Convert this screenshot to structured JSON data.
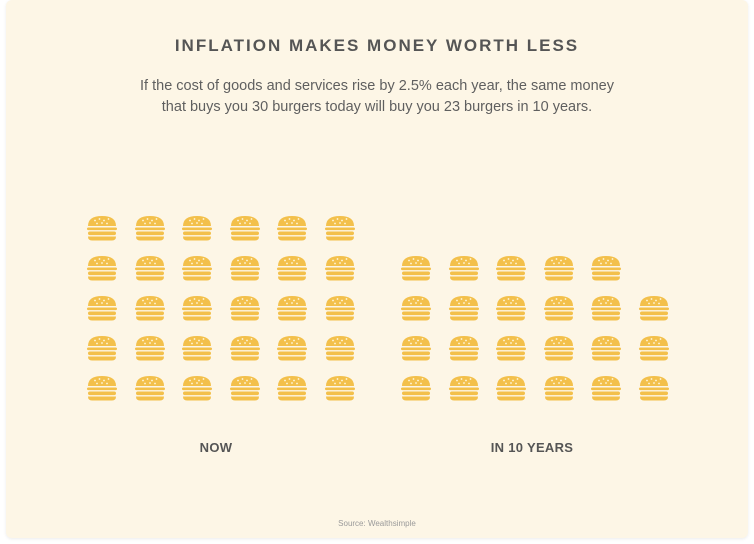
{
  "title": "INFLATION MAKES MONEY WORTH LESS",
  "subtitle_line1": "If the cost of goods and services rise by 2.5% each year, the same money",
  "subtitle_line2": "that buys you 30 burgers today will buy you 23 burgers in 10 years.",
  "source": "Source: Wealthsimple",
  "colors": {
    "burger": "#f3c04b",
    "background": "#fdf6e6",
    "text": "#555555"
  },
  "icon": "burger-icon",
  "chart_data": {
    "type": "pictogram",
    "unit": "burger",
    "groups": [
      {
        "label": "NOW",
        "count": 30
      },
      {
        "label": "IN 10 YEARS",
        "count": 23
      }
    ]
  }
}
